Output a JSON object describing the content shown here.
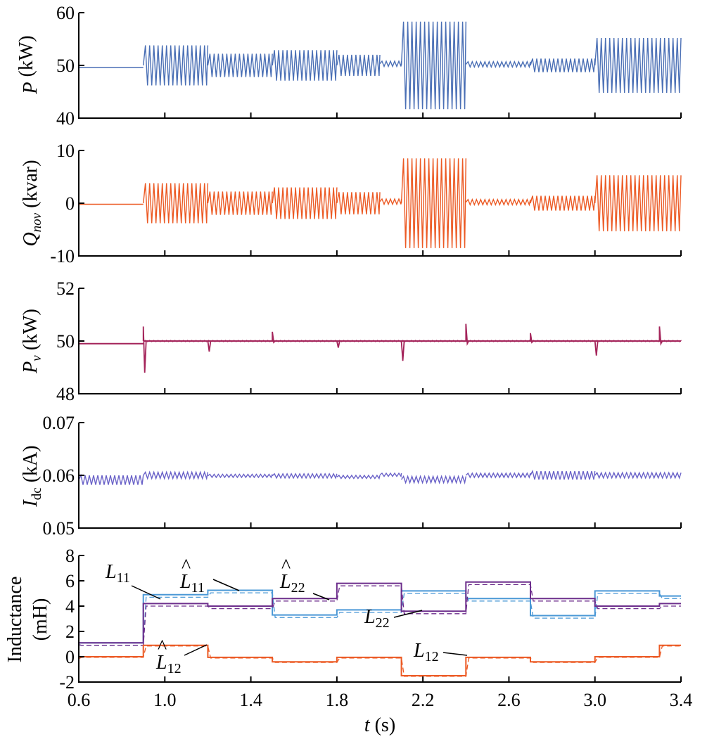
{
  "chart_data": [
    {
      "type": "line",
      "id": "p",
      "ylabel_main": "P",
      "ylabel_sub": "",
      "ylabel_unit": " (kW)",
      "xlim": [
        0.6,
        3.4
      ],
      "ylim": [
        40,
        60
      ],
      "yticks": [
        "40",
        "50",
        "60"
      ],
      "color": "#4a6fb5",
      "segments": [
        {
          "t0": 0.6,
          "t1": 0.9,
          "center": 49.6,
          "amp": 0.0
        },
        {
          "t0": 0.9,
          "t1": 1.2,
          "center": 50.0,
          "amp": 3.8
        },
        {
          "t0": 1.2,
          "t1": 1.5,
          "center": 50.0,
          "amp": 2.2
        },
        {
          "t0": 1.5,
          "t1": 1.8,
          "center": 50.0,
          "amp": 2.9
        },
        {
          "t0": 1.8,
          "t1": 2.0,
          "center": 50.0,
          "amp": 2.0
        },
        {
          "t0": 2.0,
          "t1": 2.1,
          "center": 50.3,
          "amp": 0.5
        },
        {
          "t0": 2.1,
          "t1": 2.4,
          "center": 50.0,
          "amp": 8.3
        },
        {
          "t0": 2.4,
          "t1": 2.7,
          "center": 50.2,
          "amp": 0.5
        },
        {
          "t0": 2.7,
          "t1": 3.0,
          "center": 50.0,
          "amp": 1.3
        },
        {
          "t0": 3.0,
          "t1": 3.4,
          "center": 50.0,
          "amp": 5.2
        }
      ]
    },
    {
      "type": "line",
      "id": "q",
      "ylabel_main": "Q",
      "ylabel_sub": "nov",
      "ylabel_unit": " (kvar)",
      "xlim": [
        0.6,
        3.4
      ],
      "ylim": [
        -10,
        10
      ],
      "yticks": [
        "-10",
        "0",
        "10"
      ],
      "color": "#ec5a24",
      "segments": [
        {
          "t0": 0.6,
          "t1": 0.9,
          "center": -0.2,
          "amp": 0.0
        },
        {
          "t0": 0.9,
          "t1": 1.2,
          "center": 0.0,
          "amp": 3.8
        },
        {
          "t0": 1.2,
          "t1": 1.5,
          "center": 0.0,
          "amp": 2.2
        },
        {
          "t0": 1.5,
          "t1": 1.8,
          "center": 0.0,
          "amp": 3.0
        },
        {
          "t0": 1.8,
          "t1": 2.0,
          "center": 0.0,
          "amp": 2.1
        },
        {
          "t0": 2.0,
          "t1": 2.1,
          "center": 0.3,
          "amp": 0.5
        },
        {
          "t0": 2.1,
          "t1": 2.4,
          "center": 0.0,
          "amp": 8.5
        },
        {
          "t0": 2.4,
          "t1": 2.7,
          "center": 0.2,
          "amp": 0.5
        },
        {
          "t0": 2.7,
          "t1": 3.0,
          "center": 0.0,
          "amp": 1.4
        },
        {
          "t0": 3.0,
          "t1": 3.4,
          "center": 0.0,
          "amp": 5.3
        }
      ]
    },
    {
      "type": "line",
      "id": "pv",
      "ylabel_main": "P",
      "ylabel_sub": "v",
      "ylabel_unit": " (kW)",
      "xlim": [
        0.6,
        3.4
      ],
      "ylim": [
        48,
        52
      ],
      "yticks": [
        "48",
        "50",
        "52"
      ],
      "color": "#a4245a",
      "base": [
        {
          "t0": 0.6,
          "t1": 0.9,
          "value": 49.9
        },
        {
          "t0": 0.9,
          "t1": 3.4,
          "value": 50.0
        }
      ],
      "spikes": [
        {
          "t": 0.9,
          "up": 50.55,
          "down": 48.8
        },
        {
          "t": 1.2,
          "up": 50.0,
          "down": 49.6
        },
        {
          "t": 1.5,
          "up": 50.35,
          "down": 49.95
        },
        {
          "t": 1.8,
          "up": 50.0,
          "down": 49.75
        },
        {
          "t": 2.1,
          "up": 50.0,
          "down": 49.25
        },
        {
          "t": 2.4,
          "up": 50.65,
          "down": 49.9
        },
        {
          "t": 2.7,
          "up": 50.3,
          "down": 49.95
        },
        {
          "t": 3.0,
          "up": 50.0,
          "down": 49.45
        },
        {
          "t": 3.3,
          "up": 50.55,
          "down": 49.9
        }
      ]
    },
    {
      "type": "line",
      "id": "idc",
      "ylabel_main": "I",
      "ylabel_sub": "dc",
      "ylabel_unit": " (kA)",
      "xlim": [
        0.6,
        3.4
      ],
      "ylim": [
        0.05,
        0.07
      ],
      "yticks": [
        "0.05",
        "0.06",
        "0.07"
      ],
      "color": "#6a62c8",
      "segments": [
        {
          "t0": 0.6,
          "t1": 0.9,
          "center": 0.0591,
          "amp": 0.0009
        },
        {
          "t0": 0.9,
          "t1": 1.2,
          "center": 0.06,
          "amp": 0.0006
        },
        {
          "t0": 1.2,
          "t1": 1.5,
          "center": 0.0599,
          "amp": 0.0003
        },
        {
          "t0": 1.5,
          "t1": 1.8,
          "center": 0.0599,
          "amp": 0.0004
        },
        {
          "t0": 1.8,
          "t1": 2.0,
          "center": 0.0597,
          "amp": 0.0003
        },
        {
          "t0": 2.0,
          "t1": 2.1,
          "center": 0.0601,
          "amp": 0.0003
        },
        {
          "t0": 2.1,
          "t1": 2.4,
          "center": 0.0592,
          "amp": 0.0006
        },
        {
          "t0": 2.4,
          "t1": 2.7,
          "center": 0.06,
          "amp": 0.0004
        },
        {
          "t0": 2.7,
          "t1": 3.0,
          "center": 0.06,
          "amp": 0.0008
        },
        {
          "t0": 3.0,
          "t1": 3.4,
          "center": 0.06,
          "amp": 0.0005
        }
      ]
    },
    {
      "type": "line",
      "id": "ind",
      "ylabel_line1": "Inductance",
      "ylabel_line2": "(mH)",
      "xlabel_main": "t",
      "xlabel_unit": " (s)",
      "xlim": [
        0.6,
        3.4
      ],
      "ylim": [
        -2,
        8
      ],
      "yticks": [
        "-2",
        "0",
        "2",
        "4",
        "6",
        "8"
      ],
      "xticks": [
        "0.6",
        "1.0",
        "1.4",
        "1.8",
        "2.2",
        "2.6",
        "3.0",
        "3.4"
      ],
      "breaks": [
        0.6,
        0.9,
        1.2,
        1.5,
        1.8,
        2.1,
        2.4,
        2.7,
        3.0,
        3.3,
        3.4
      ],
      "series": [
        {
          "key": "L11",
          "color": "#4a98d6",
          "values": [
            1.1,
            4.9,
            5.25,
            3.3,
            3.7,
            5.2,
            4.6,
            3.25,
            5.2,
            4.8
          ]
        },
        {
          "key": "L22",
          "color": "#6d2e8c",
          "values": [
            1.1,
            4.2,
            4.0,
            4.6,
            5.8,
            3.6,
            5.9,
            4.6,
            4.0,
            4.2
          ]
        },
        {
          "key": "L12",
          "color": "#ec5a24",
          "values": [
            0.0,
            0.9,
            -0.05,
            -0.4,
            -0.05,
            -1.5,
            -0.05,
            -0.4,
            0.0,
            0.9
          ]
        }
      ],
      "annotations": [
        {
          "main": "L",
          "sub": "11",
          "hat": false
        },
        {
          "main": "L",
          "sub": "11",
          "hat": true
        },
        {
          "main": "L",
          "sub": "22",
          "hat": true
        },
        {
          "main": "L",
          "sub": "22",
          "hat": false
        },
        {
          "main": "L",
          "sub": "12",
          "hat": true
        },
        {
          "main": "L",
          "sub": "12",
          "hat": false
        }
      ]
    }
  ]
}
